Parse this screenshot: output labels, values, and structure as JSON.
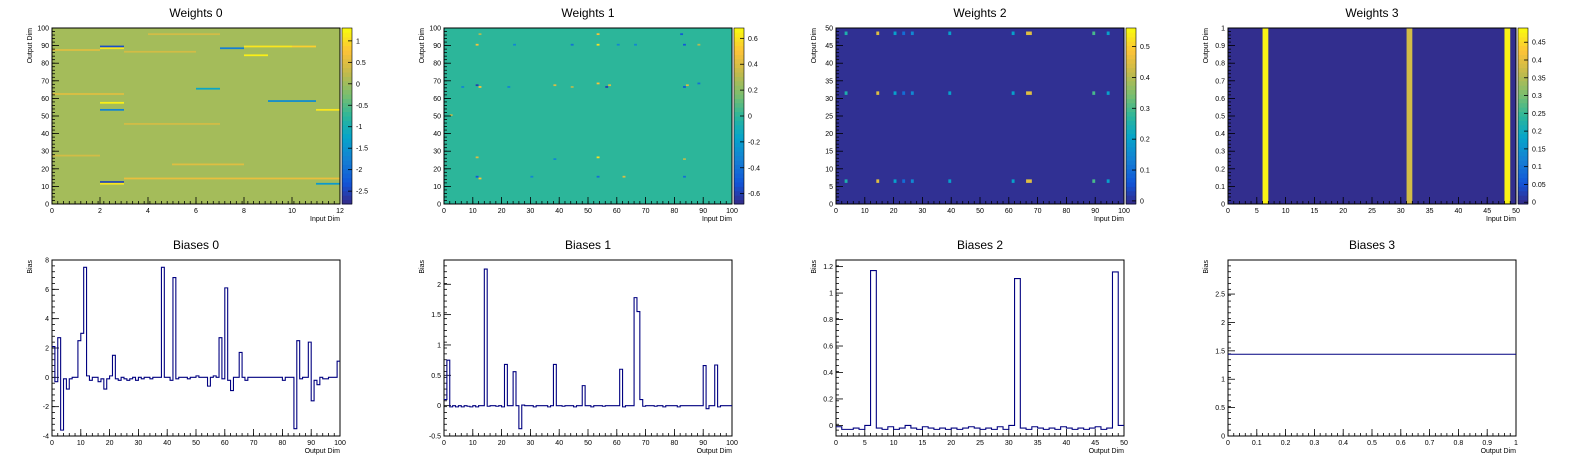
{
  "chart_data": [
    {
      "type": "heatmap",
      "title": "Weights 0",
      "xlabel": "Input Dim",
      "ylabel": "Output Dim",
      "xlim": [
        0,
        12
      ],
      "ylim": [
        0,
        100
      ],
      "xticks": [
        "0",
        "2",
        "4",
        "6",
        "8",
        "10",
        "12"
      ],
      "yticks": [
        "0",
        "10",
        "20",
        "30",
        "40",
        "50",
        "60",
        "70",
        "80",
        "90",
        "100"
      ],
      "zlim": [
        -2.8,
        1.3
      ],
      "zticks": [
        "1",
        "0.5",
        "0",
        "-0.5",
        "-1",
        "-1.5",
        "-2",
        "-2.5"
      ],
      "base_value": 0.05,
      "cells": [
        {
          "x": 2,
          "y": 89,
          "w": 1,
          "v": -2.4
        },
        {
          "x": 2,
          "y": 88,
          "w": 1,
          "v": 1.1
        },
        {
          "x": 7,
          "y": 88,
          "w": 1,
          "v": -1.8
        },
        {
          "x": 8,
          "y": 89,
          "w": 2,
          "v": 1.1
        },
        {
          "x": 10,
          "y": 89,
          "w": 1,
          "v": 0.9
        },
        {
          "x": 8,
          "y": 84,
          "w": 1,
          "v": 1.2
        },
        {
          "x": 6,
          "y": 65,
          "w": 1,
          "v": -1.2
        },
        {
          "x": 9,
          "y": 58,
          "w": 2,
          "v": -1.6
        },
        {
          "x": 2,
          "y": 57,
          "w": 1,
          "v": 1.2
        },
        {
          "x": 2,
          "y": 53,
          "w": 1,
          "v": -1.7
        },
        {
          "x": 11,
          "y": 53,
          "w": 1,
          "v": 1.1
        },
        {
          "x": 2,
          "y": 12,
          "w": 1,
          "v": -2.5
        },
        {
          "x": 2,
          "y": 11,
          "w": 1,
          "v": 1.1
        },
        {
          "x": 11,
          "y": 11,
          "w": 1,
          "v": -1.4
        },
        {
          "x": 0,
          "y": 87,
          "w": 2,
          "v": 0.5
        },
        {
          "x": 3,
          "y": 86,
          "w": 3,
          "v": 0.4
        },
        {
          "x": 0,
          "y": 62,
          "w": 3,
          "v": 0.5
        },
        {
          "x": 3,
          "y": 45,
          "w": 4,
          "v": 0.4
        },
        {
          "x": 0,
          "y": 27,
          "w": 2,
          "v": 0.4
        },
        {
          "x": 5,
          "y": 22,
          "w": 3,
          "v": 0.5
        },
        {
          "x": 3,
          "y": 14,
          "w": 9,
          "v": 0.6
        },
        {
          "x": 4,
          "y": 96,
          "w": 3,
          "v": 0.4
        }
      ]
    },
    {
      "type": "heatmap",
      "title": "Weights 1",
      "xlabel": "Input Dim",
      "ylabel": "Output Dim",
      "xlim": [
        0,
        100
      ],
      "ylim": [
        0,
        100
      ],
      "xticks": [
        "0",
        "10",
        "20",
        "30",
        "40",
        "50",
        "60",
        "70",
        "80",
        "90",
        "100"
      ],
      "yticks": [
        "0",
        "10",
        "20",
        "30",
        "40",
        "50",
        "60",
        "70",
        "80",
        "90",
        "100"
      ],
      "zlim": [
        -0.68,
        0.68
      ],
      "zticks": [
        "0.6",
        "0.4",
        "0.2",
        "0",
        "-0.2",
        "-0.4",
        "-0.6"
      ],
      "base_value": 0.0,
      "cells": [
        {
          "x": 11,
          "y": 90,
          "w": 1,
          "v": 0.5
        },
        {
          "x": 12,
          "y": 96,
          "w": 1,
          "v": 0.3
        },
        {
          "x": 11,
          "y": 67,
          "w": 1,
          "v": -0.6
        },
        {
          "x": 12,
          "y": 66,
          "w": 1,
          "v": 0.5
        },
        {
          "x": 11,
          "y": 26,
          "w": 1,
          "v": 0.4
        },
        {
          "x": 11,
          "y": 15,
          "w": 1,
          "v": -0.5
        },
        {
          "x": 12,
          "y": 14,
          "w": 1,
          "v": 0.5
        },
        {
          "x": 22,
          "y": 66,
          "w": 1,
          "v": -0.3
        },
        {
          "x": 38,
          "y": 67,
          "w": 1,
          "v": 0.4
        },
        {
          "x": 38,
          "y": 25,
          "w": 1,
          "v": -0.3
        },
        {
          "x": 44,
          "y": 90,
          "w": 1,
          "v": -0.4
        },
        {
          "x": 44,
          "y": 66,
          "w": 1,
          "v": 0.3
        },
        {
          "x": 53,
          "y": 96,
          "w": 1,
          "v": 0.5
        },
        {
          "x": 53,
          "y": 90,
          "w": 1,
          "v": 0.6
        },
        {
          "x": 53,
          "y": 68,
          "w": 1,
          "v": 0.5
        },
        {
          "x": 53,
          "y": 26,
          "w": 1,
          "v": 0.6
        },
        {
          "x": 53,
          "y": 15,
          "w": 1,
          "v": -0.4
        },
        {
          "x": 56,
          "y": 66,
          "w": 1,
          "v": -0.6
        },
        {
          "x": 57,
          "y": 67,
          "w": 1,
          "v": 0.4
        },
        {
          "x": 60,
          "y": 90,
          "w": 1,
          "v": -0.3
        },
        {
          "x": 62,
          "y": 15,
          "w": 1,
          "v": 0.4
        },
        {
          "x": 66,
          "y": 90,
          "w": 1,
          "v": -0.3
        },
        {
          "x": 82,
          "y": 96,
          "w": 1,
          "v": -0.5
        },
        {
          "x": 83,
          "y": 90,
          "w": 1,
          "v": -0.5
        },
        {
          "x": 83,
          "y": 66,
          "w": 1,
          "v": -0.5
        },
        {
          "x": 84,
          "y": 67,
          "w": 1,
          "v": 0.4
        },
        {
          "x": 83,
          "y": 25,
          "w": 1,
          "v": 0.3
        },
        {
          "x": 83,
          "y": 15,
          "w": 1,
          "v": -0.4
        },
        {
          "x": 88,
          "y": 90,
          "w": 1,
          "v": 0.3
        },
        {
          "x": 88,
          "y": 68,
          "w": 1,
          "v": -0.4
        },
        {
          "x": 6,
          "y": 66,
          "w": 1,
          "v": -0.3
        },
        {
          "x": 30,
          "y": 15,
          "w": 1,
          "v": -0.3
        },
        {
          "x": 2,
          "y": 50,
          "w": 1,
          "v": 0.3
        },
        {
          "x": 24,
          "y": 90,
          "w": 1,
          "v": -0.3
        }
      ]
    },
    {
      "type": "heatmap",
      "title": "Weights 2",
      "xlabel": "Input Dim",
      "ylabel": "Output Dim",
      "xlim": [
        0,
        100
      ],
      "ylim": [
        0,
        50
      ],
      "xticks": [
        "0",
        "10",
        "20",
        "30",
        "40",
        "50",
        "60",
        "70",
        "80",
        "90",
        "100"
      ],
      "yticks": [
        "0",
        "5",
        "10",
        "15",
        "20",
        "25",
        "30",
        "35",
        "40",
        "45",
        "50"
      ],
      "zlim": [
        -0.01,
        0.56
      ],
      "zticks": [
        "0.5",
        "0.4",
        "0.3",
        "0.2",
        "0.1",
        "0"
      ],
      "base_value": 0.0,
      "cells": [
        {
          "x": 3,
          "y": 48,
          "w": 1,
          "v": 0.25
        },
        {
          "x": 14,
          "y": 48,
          "w": 1,
          "v": 0.45
        },
        {
          "x": 20,
          "y": 48,
          "w": 1,
          "v": 0.2
        },
        {
          "x": 23,
          "y": 48,
          "w": 1,
          "v": 0.1
        },
        {
          "x": 26,
          "y": 48,
          "w": 1,
          "v": 0.15
        },
        {
          "x": 39,
          "y": 48,
          "w": 1,
          "v": 0.2
        },
        {
          "x": 61,
          "y": 48,
          "w": 1,
          "v": 0.2
        },
        {
          "x": 66,
          "y": 48,
          "w": 2,
          "v": 0.45
        },
        {
          "x": 89,
          "y": 48,
          "w": 1,
          "v": 0.3
        },
        {
          "x": 94,
          "y": 48,
          "w": 1,
          "v": 0.2
        },
        {
          "x": 3,
          "y": 31,
          "w": 1,
          "v": 0.25
        },
        {
          "x": 14,
          "y": 31,
          "w": 1,
          "v": 0.45
        },
        {
          "x": 20,
          "y": 31,
          "w": 1,
          "v": 0.2
        },
        {
          "x": 23,
          "y": 31,
          "w": 1,
          "v": 0.1
        },
        {
          "x": 26,
          "y": 31,
          "w": 1,
          "v": 0.15
        },
        {
          "x": 39,
          "y": 31,
          "w": 1,
          "v": 0.2
        },
        {
          "x": 61,
          "y": 31,
          "w": 1,
          "v": 0.2
        },
        {
          "x": 66,
          "y": 31,
          "w": 2,
          "v": 0.45
        },
        {
          "x": 89,
          "y": 31,
          "w": 1,
          "v": 0.3
        },
        {
          "x": 94,
          "y": 31,
          "w": 1,
          "v": 0.2
        },
        {
          "x": 3,
          "y": 6,
          "w": 1,
          "v": 0.25
        },
        {
          "x": 14,
          "y": 6,
          "w": 1,
          "v": 0.45
        },
        {
          "x": 20,
          "y": 6,
          "w": 1,
          "v": 0.2
        },
        {
          "x": 23,
          "y": 6,
          "w": 1,
          "v": 0.1
        },
        {
          "x": 26,
          "y": 6,
          "w": 1,
          "v": 0.15
        },
        {
          "x": 39,
          "y": 6,
          "w": 1,
          "v": 0.2
        },
        {
          "x": 61,
          "y": 6,
          "w": 1,
          "v": 0.2
        },
        {
          "x": 66,
          "y": 6,
          "w": 2,
          "v": 0.45
        },
        {
          "x": 89,
          "y": 6,
          "w": 1,
          "v": 0.3
        },
        {
          "x": 94,
          "y": 6,
          "w": 1,
          "v": 0.2
        }
      ]
    },
    {
      "type": "heatmap",
      "title": "Weights 3",
      "xlabel": "Input Dim",
      "ylabel": "Output Dim",
      "xlim": [
        0,
        50
      ],
      "ylim": [
        0,
        1
      ],
      "xticks": [
        "0",
        "5",
        "10",
        "15",
        "20",
        "25",
        "30",
        "35",
        "40",
        "45",
        "50"
      ],
      "yticks": [
        "0",
        "0.1",
        "0.2",
        "0.3",
        "0.4",
        "0.5",
        "0.6",
        "0.7",
        "0.8",
        "0.9",
        "1"
      ],
      "zlim": [
        -0.005,
        0.49
      ],
      "zticks": [
        "0.45",
        "0.4",
        "0.35",
        "0.3",
        "0.25",
        "0.2",
        "0.15",
        "0.1",
        "0.05",
        "0"
      ],
      "base_value": 0.0,
      "cells": [
        {
          "x": 6,
          "y": 0,
          "w": 1,
          "h": 1,
          "v": 0.48
        },
        {
          "x": 31,
          "y": 0,
          "w": 1,
          "h": 1,
          "v": 0.38
        },
        {
          "x": 48,
          "y": 0,
          "w": 1,
          "h": 1,
          "v": 0.48
        }
      ]
    },
    {
      "type": "line",
      "title": "Biases 0",
      "xlabel": "Output Dim",
      "ylabel": "Bias",
      "xlim": [
        0,
        100
      ],
      "ylim": [
        -4,
        8
      ],
      "xticks": [
        "0",
        "10",
        "20",
        "30",
        "40",
        "50",
        "60",
        "70",
        "80",
        "90",
        "100"
      ],
      "yticks": [
        "-4",
        "-2",
        "0",
        "2",
        "4",
        "6",
        "8"
      ],
      "series": [
        {
          "name": "Biases 0",
          "values": [
            2.1,
            -0.3,
            2.7,
            -3.6,
            -0.1,
            -0.8,
            -0.1,
            0,
            0,
            2.5,
            3.0,
            7.5,
            0.1,
            -0.2,
            0,
            0,
            -0.3,
            -0.1,
            -0.8,
            -0.1,
            0.1,
            1.5,
            -0.1,
            -0.2,
            0,
            -0.1,
            -0.2,
            -0.1,
            0,
            -0.2,
            0,
            -0.1,
            0,
            0,
            -0.1,
            0,
            0,
            0,
            7.5,
            0,
            0,
            -0.2,
            6.8,
            -0.1,
            0,
            0,
            0,
            -0.1,
            0,
            0,
            0.1,
            0,
            0,
            0,
            -0.6,
            0,
            0.1,
            0,
            2.7,
            -0.1,
            6.1,
            -0.2,
            -0.9,
            0,
            0,
            1.7,
            0,
            -0.2,
            0,
            0,
            0,
            0,
            0,
            0,
            0,
            0,
            0,
            0,
            0,
            0,
            -0.2,
            0,
            0,
            0,
            -3.5,
            2.5,
            -0.1,
            0,
            0,
            2.4,
            -1.6,
            -0.2,
            -0.5,
            0,
            -0.1,
            -0.1,
            0,
            0,
            0,
            1.1
          ]
        }
      ]
    },
    {
      "type": "line",
      "title": "Biases 1",
      "xlabel": "Output Dim",
      "ylabel": "Bias",
      "xlim": [
        0,
        100
      ],
      "ylim": [
        -0.5,
        2.4
      ],
      "xticks": [
        "0",
        "10",
        "20",
        "30",
        "40",
        "50",
        "60",
        "70",
        "80",
        "90",
        "100"
      ],
      "yticks": [
        "-0.5",
        "0",
        "0.5",
        "1",
        "1.5",
        "2"
      ],
      "series": [
        {
          "name": "Biases 1",
          "values": [
            0.1,
            0.75,
            -0.02,
            0,
            -0.02,
            0,
            -0.02,
            0,
            -0.01,
            -0.02,
            0,
            -0.02,
            0,
            0,
            2.25,
            -0.01,
            0,
            0,
            -0.01,
            0,
            -0.02,
            0.68,
            0,
            0,
            0.56,
            0,
            -0.38,
            0.01,
            0,
            0,
            0,
            -0.02,
            0,
            0,
            0,
            0,
            -0.02,
            0,
            0.68,
            0,
            0,
            -0.01,
            0,
            0,
            0,
            -0.02,
            0,
            0,
            0.33,
            0,
            0,
            -0.02,
            0,
            0,
            0,
            -0.01,
            0,
            0,
            0,
            0,
            0,
            0.6,
            -0.02,
            0,
            0,
            0,
            1.78,
            1.55,
            0.1,
            -0.01,
            0,
            0,
            0,
            -0.01,
            0,
            0,
            -0.02,
            0,
            0,
            0,
            0,
            -0.02,
            0,
            0,
            0,
            0,
            0,
            0,
            0,
            0,
            0.66,
            -0.05,
            0,
            0,
            0.67,
            -0.02,
            0,
            0,
            0,
            0
          ]
        }
      ]
    },
    {
      "type": "line",
      "title": "Biases 2",
      "xlabel": "Output Dim",
      "ylabel": "Bias",
      "xlim": [
        0,
        50
      ],
      "ylim": [
        -0.08,
        1.25
      ],
      "xticks": [
        "0",
        "5",
        "10",
        "15",
        "20",
        "25",
        "30",
        "35",
        "40",
        "45",
        "50"
      ],
      "yticks": [
        "0",
        "0.2",
        "0.4",
        "0.6",
        "0.8",
        "1",
        "1.2"
      ],
      "series": [
        {
          "name": "Biases 2",
          "values": [
            -0.01,
            -0.03,
            -0.03,
            -0.02,
            -0.03,
            0,
            1.17,
            -0.02,
            -0.03,
            -0.01,
            -0.03,
            -0.02,
            0,
            -0.02,
            -0.03,
            -0.01,
            -0.02,
            -0.03,
            -0.02,
            -0.03,
            -0.02,
            -0.03,
            -0.02,
            -0.01,
            -0.02,
            -0.03,
            -0.02,
            -0.03,
            -0.01,
            -0.03,
            0,
            1.11,
            -0.02,
            -0.03,
            -0.01,
            -0.02,
            -0.03,
            -0.02,
            -0.03,
            -0.01,
            -0.02,
            -0.03,
            -0.02,
            -0.03,
            -0.02,
            -0.01,
            -0.03,
            -0.02,
            1.16,
            0
          ]
        }
      ]
    },
    {
      "type": "line",
      "title": "Biases 3",
      "xlabel": "Output Dim",
      "ylabel": "Bias",
      "xlim": [
        0,
        1
      ],
      "ylim": [
        0,
        3.1
      ],
      "xticks": [
        "0",
        "0.1",
        "0.2",
        "0.3",
        "0.4",
        "0.5",
        "0.6",
        "0.7",
        "0.8",
        "0.9",
        "1"
      ],
      "yticks": [
        "0",
        "0.5",
        "1",
        "1.5",
        "2",
        "2.5"
      ],
      "series": [
        {
          "name": "Biases 3",
          "values": [
            1.44
          ]
        }
      ]
    }
  ]
}
